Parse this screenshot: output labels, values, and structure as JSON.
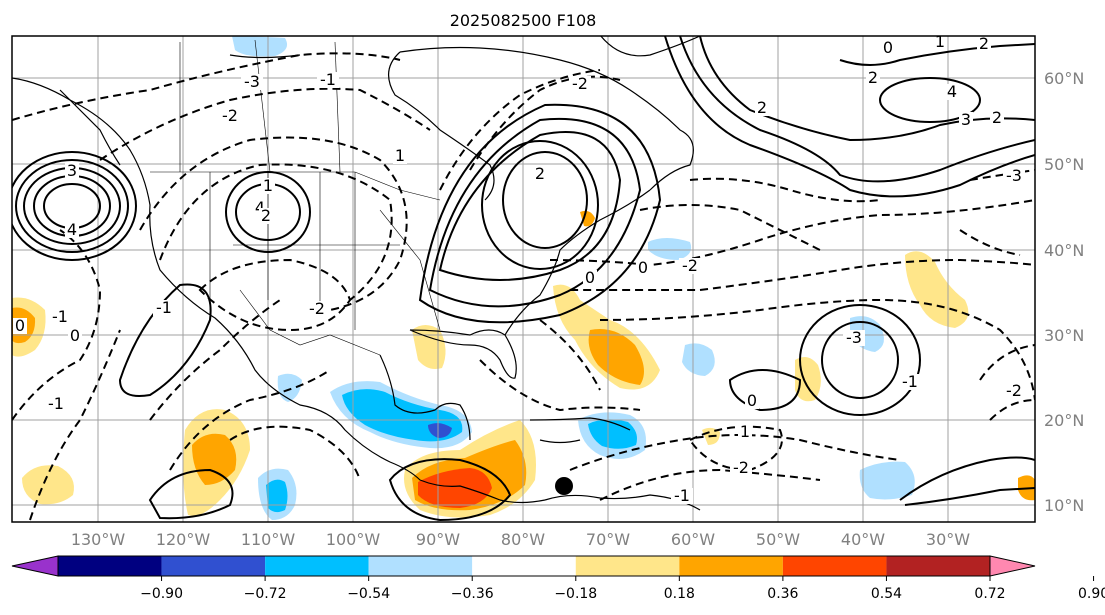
{
  "title": "2025082500 F108",
  "longitude_labels": [
    "130°W",
    "120°W",
    "110°W",
    "100°W",
    "90°W",
    "80°W",
    "70°W",
    "60°W",
    "50°W",
    "40°W",
    "30°W"
  ],
  "latitude_labels": [
    "60°N",
    "50°N",
    "40°N",
    "30°N",
    "20°N",
    "10°N"
  ],
  "colorbar": {
    "tick_labels": [
      "−0.90",
      "−0.72",
      "−0.54",
      "−0.36",
      "−0.18",
      "0.18",
      "0.36",
      "0.54",
      "0.72",
      "0.90"
    ],
    "colors": [
      "#9932cc",
      "#000080",
      "#3050d0",
      "#00bfff",
      "#b0e0ff",
      "#ffffff",
      "#ffe68a",
      "#ffa500",
      "#ff4500",
      "#b22222",
      "#ff88b0"
    ]
  },
  "contour_labels": [
    {
      "text": "0"
    },
    {
      "text": "1"
    },
    {
      "text": "2"
    },
    {
      "text": "2"
    },
    {
      "text": "2"
    },
    {
      "text": "4"
    },
    {
      "text": "3"
    },
    {
      "text": "2"
    },
    {
      "text": "-3"
    },
    {
      "text": "4"
    },
    {
      "text": "3"
    },
    {
      "text": "4"
    },
    {
      "text": "1"
    },
    {
      "text": "2"
    },
    {
      "text": "-2"
    },
    {
      "text": "-1"
    },
    {
      "text": "-1"
    },
    {
      "text": "0"
    },
    {
      "text": "-1"
    },
    {
      "text": "0"
    },
    {
      "text": "-2"
    },
    {
      "text": "-1"
    },
    {
      "text": "-3"
    },
    {
      "text": "-2"
    },
    {
      "text": "1"
    },
    {
      "text": "0"
    },
    {
      "text": "-2"
    },
    {
      "text": "0"
    },
    {
      "text": "0"
    },
    {
      "text": "-2"
    },
    {
      "text": "-3"
    },
    {
      "text": "-1"
    },
    {
      "text": "1"
    },
    {
      "text": "2"
    },
    {
      "text": "-1"
    },
    {
      "text": "-2"
    }
  ],
  "marker": {
    "label": "black-dot-marker"
  }
}
